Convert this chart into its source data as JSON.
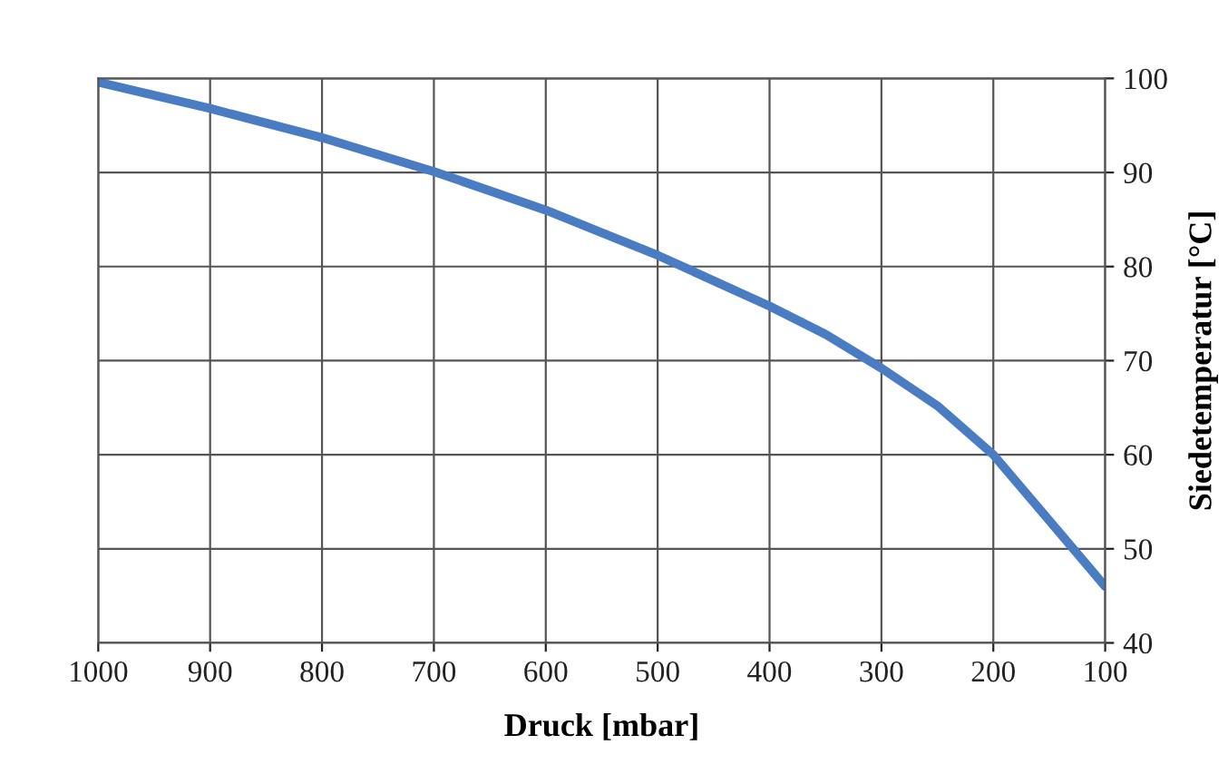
{
  "chart_data": {
    "type": "line",
    "xlabel": "Druck [mbar]",
    "ylabel": "Siedetemperatur [°C]",
    "x": [
      1000,
      900,
      800,
      700,
      600,
      500,
      400,
      350,
      300,
      250,
      200,
      150,
      100
    ],
    "series": [
      {
        "color": "#4a7cc4",
        "values": [
          99.6,
          96.8,
          93.7,
          90.1,
          86,
          81.2,
          75.8,
          72.8,
          69.2,
          65.2,
          60,
          53,
          46
        ]
      }
    ],
    "xlim": [
      1000,
      100
    ],
    "xticks": [
      1000,
      900,
      800,
      700,
      600,
      500,
      400,
      300,
      200,
      100
    ],
    "ylim": [
      40,
      100
    ],
    "yticks": [
      40,
      50,
      60,
      70,
      80,
      90,
      100
    ],
    "grid": true,
    "line_style": "solid",
    "marker": "none"
  }
}
